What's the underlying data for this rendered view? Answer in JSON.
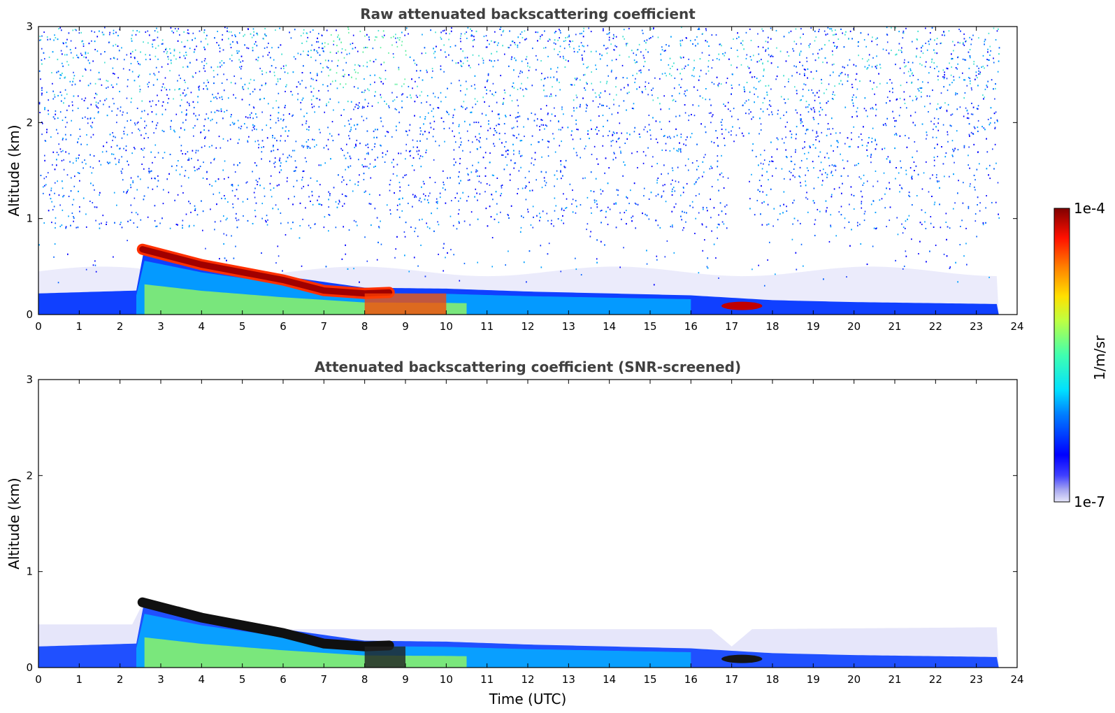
{
  "chart_data": [
    {
      "type": "heatmap",
      "title": "Raw attenuated backscattering coefficient",
      "xlabel": "",
      "ylabel": "Altitude (km)",
      "xlim": [
        0,
        24
      ],
      "ylim": [
        0,
        3
      ],
      "xticks": [
        0,
        1,
        2,
        3,
        4,
        5,
        6,
        7,
        8,
        9,
        10,
        11,
        12,
        13,
        14,
        15,
        16,
        17,
        18,
        19,
        20,
        21,
        22,
        23,
        24
      ],
      "yticks": [
        0,
        1,
        2,
        3
      ],
      "data_end_time": 23.55,
      "features": {
        "aerosol_layer_top_km": [
          {
            "t": 0.0,
            "z": 0.22
          },
          {
            "t": 2.4,
            "z": 0.25
          },
          {
            "t": 2.6,
            "z": 0.7
          },
          {
            "t": 4.0,
            "z": 0.55
          },
          {
            "t": 6.0,
            "z": 0.4
          },
          {
            "t": 8.0,
            "z": 0.28
          },
          {
            "t": 10.0,
            "z": 0.27
          },
          {
            "t": 12.0,
            "z": 0.24
          },
          {
            "t": 14.0,
            "z": 0.22
          },
          {
            "t": 16.0,
            "z": 0.2
          },
          {
            "t": 18.0,
            "z": 0.15
          },
          {
            "t": 20.0,
            "z": 0.13
          },
          {
            "t": 23.5,
            "z": 0.11
          }
        ],
        "strong_layer_km": [
          {
            "t": 2.55,
            "z": 0.68
          },
          {
            "t": 4.0,
            "z": 0.52
          },
          {
            "t": 6.0,
            "z": 0.36
          },
          {
            "t": 7.0,
            "z": 0.25
          },
          {
            "t": 8.0,
            "z": 0.22
          },
          {
            "t": 8.6,
            "z": 0.23
          }
        ],
        "noise_gap_time": [
          16.9,
          17.4
        ],
        "cloud_patch_time": [
          16.8,
          17.8
        ]
      }
    },
    {
      "type": "heatmap",
      "title": "Attenuated backscattering coefficient (SNR-screened)",
      "xlabel": "Time (UTC)",
      "ylabel": "Altitude (km)",
      "xlim": [
        0,
        24
      ],
      "ylim": [
        0,
        3
      ],
      "xticks": [
        0,
        1,
        2,
        3,
        4,
        5,
        6,
        7,
        8,
        9,
        10,
        11,
        12,
        13,
        14,
        15,
        16,
        17,
        18,
        19,
        20,
        21,
        22,
        23,
        24
      ],
      "yticks": [
        0,
        1,
        2,
        3
      ],
      "data_end_time": 23.55,
      "screened_top_km": [
        {
          "t": 0.0,
          "z": 0.45
        },
        {
          "t": 2.3,
          "z": 0.45
        },
        {
          "t": 2.6,
          "z": 0.7
        },
        {
          "t": 4.0,
          "z": 0.55
        },
        {
          "t": 6.0,
          "z": 0.4
        },
        {
          "t": 9.5,
          "z": 0.4
        },
        {
          "t": 16.5,
          "z": 0.4
        },
        {
          "t": 17.0,
          "z": 0.22
        },
        {
          "t": 17.5,
          "z": 0.4
        },
        {
          "t": 23.5,
          "z": 0.42
        }
      ]
    }
  ],
  "colorbar": {
    "label": "1/m/sr",
    "max_label": "1e-4",
    "min_label": "1e-7",
    "range": [
      1e-07,
      0.0001
    ],
    "scale": "log",
    "colormap": "jet"
  }
}
